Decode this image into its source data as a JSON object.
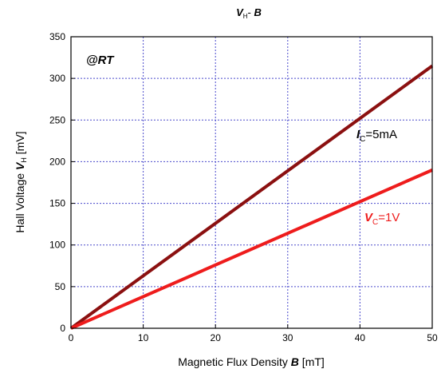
{
  "chart_data": {
    "type": "line",
    "title": {
      "main": "V",
      "sub": "H",
      "rest": "- ",
      "bold2": "B"
    },
    "xlabel": {
      "pre": "Magnetic Flux Density ",
      "sym": "B",
      "post": " [mT]"
    },
    "ylabel": {
      "pre": "Hall Voltage ",
      "sym": "V",
      "sub": "H",
      "post": " [mV]"
    },
    "xlim": [
      0,
      50
    ],
    "ylim": [
      0,
      350
    ],
    "xticks": [
      "0",
      "10",
      "20",
      "30",
      "40",
      "50"
    ],
    "yticks": [
      "0",
      "50",
      "100",
      "150",
      "200",
      "250",
      "300",
      "350"
    ],
    "grid": true,
    "series": [
      {
        "name": "IC=5mA",
        "label_sym": "I",
        "label_sub": "C",
        "label_rest": "=5mA",
        "color": "#8b1010",
        "x": [
          0,
          50
        ],
        "y": [
          0,
          315
        ]
      },
      {
        "name": "VC=1V",
        "label_sym": "V",
        "label_sub": "C",
        "label_rest": "=1V",
        "color": "#ee1c1c",
        "x": [
          0,
          50
        ],
        "y": [
          0,
          190
        ]
      }
    ],
    "annotations": [
      {
        "text": "@RT"
      }
    ]
  }
}
